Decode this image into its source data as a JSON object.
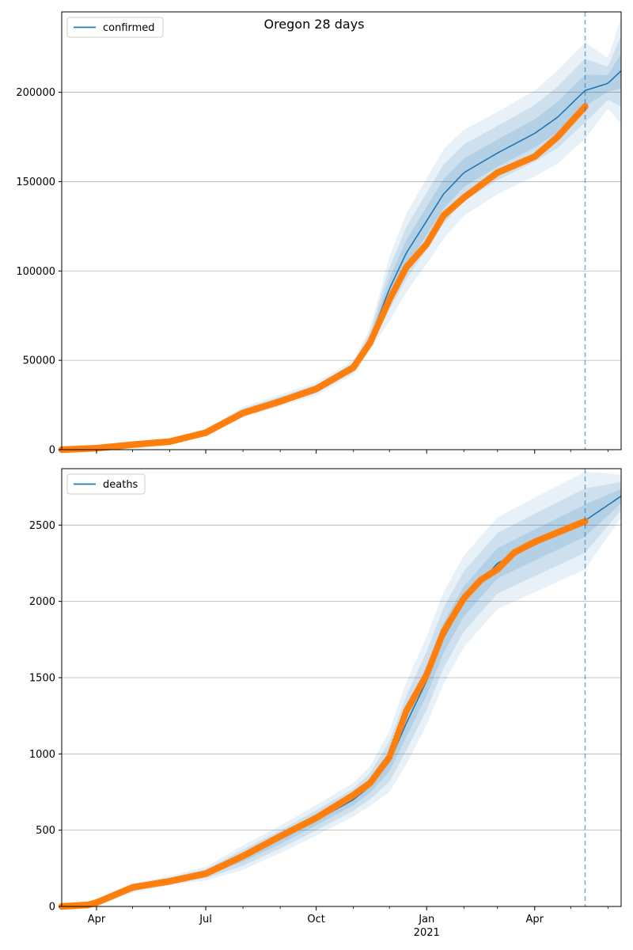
{
  "figure": {
    "title": "Oregon 28 days"
  },
  "colors": {
    "forecast_line": "#1f77b4",
    "observed_points": "#ff7f0e",
    "band": "#1f77b4",
    "grid": "#b0b0b0",
    "axes": "#000000"
  },
  "x_axis": {
    "tick_labels": [
      {
        "date": "2020-04-01",
        "label": "Apr",
        "sublabel": ""
      },
      {
        "date": "2020-07-01",
        "label": "Jul",
        "sublabel": ""
      },
      {
        "date": "2020-10-01",
        "label": "Oct",
        "sublabel": ""
      },
      {
        "date": "2021-01-01",
        "label": "Jan",
        "sublabel": "2021"
      },
      {
        "date": "2021-04-01",
        "label": "Apr",
        "sublabel": ""
      }
    ],
    "minor_tick_dates": [
      "2020-05-01",
      "2020-06-01",
      "2020-08-01",
      "2020-09-01",
      "2020-11-01",
      "2020-12-01",
      "2021-02-01",
      "2021-03-01",
      "2021-05-01",
      "2021-06-01"
    ],
    "range": [
      "2020-03-03",
      "2021-06-12"
    ]
  },
  "chart_data": [
    {
      "type": "line",
      "legend": {
        "label": "confirmed",
        "position": "top-left"
      },
      "ylim": [
        0,
        245000
      ],
      "yticks": [
        0,
        50000,
        100000,
        150000,
        200000
      ],
      "ytick_labels": [
        "0",
        "50000",
        "100000",
        "150000",
        "200000"
      ],
      "grid": true,
      "forecast_start": "2021-05-13",
      "model_line": [
        [
          "2020-03-03",
          0
        ],
        [
          "2020-04-01",
          600
        ],
        [
          "2020-05-01",
          2800
        ],
        [
          "2020-06-01",
          5000
        ],
        [
          "2020-07-01",
          10000
        ],
        [
          "2020-08-01",
          21000
        ],
        [
          "2020-09-01",
          27500
        ],
        [
          "2020-10-01",
          34000
        ],
        [
          "2020-11-01",
          46000
        ],
        [
          "2020-11-15",
          62000
        ],
        [
          "2020-12-01",
          90000
        ],
        [
          "2020-12-15",
          110000
        ],
        [
          "2021-01-01",
          128000
        ],
        [
          "2021-01-15",
          143000
        ],
        [
          "2021-02-01",
          155000
        ],
        [
          "2021-03-01",
          166000
        ],
        [
          "2021-04-01",
          177000
        ],
        [
          "2021-04-20",
          186000
        ],
        [
          "2021-05-13",
          201000
        ],
        [
          "2021-06-01",
          205000
        ],
        [
          "2021-06-12",
          212000
        ]
      ],
      "band_width": [
        [
          "2020-03-03",
          0
        ],
        [
          "2020-04-01",
          300
        ],
        [
          "2020-05-01",
          500
        ],
        [
          "2020-06-01",
          900
        ],
        [
          "2020-07-01",
          1500
        ],
        [
          "2020-08-01",
          3000
        ],
        [
          "2020-09-01",
          3300
        ],
        [
          "2020-10-01",
          3600
        ],
        [
          "2020-11-01",
          4000
        ],
        [
          "2020-11-15",
          6000
        ],
        [
          "2020-12-01",
          18000
        ],
        [
          "2020-12-15",
          22000
        ],
        [
          "2021-01-01",
          24000
        ],
        [
          "2021-01-15",
          25000
        ],
        [
          "2021-02-01",
          24000
        ],
        [
          "2021-03-01",
          23000
        ],
        [
          "2021-04-01",
          24000
        ],
        [
          "2021-04-20",
          26000
        ],
        [
          "2021-05-13",
          27000
        ],
        [
          "2021-06-01",
          14000
        ],
        [
          "2021-06-12",
          30000
        ]
      ],
      "observed": [
        [
          "2020-03-03",
          0
        ],
        [
          "2020-04-01",
          800
        ],
        [
          "2020-05-01",
          2800
        ],
        [
          "2020-06-01",
          4500
        ],
        [
          "2020-07-01",
          9500
        ],
        [
          "2020-08-01",
          20500
        ],
        [
          "2020-09-01",
          27000
        ],
        [
          "2020-10-01",
          34000
        ],
        [
          "2020-11-01",
          46000
        ],
        [
          "2020-11-15",
          60000
        ],
        [
          "2020-12-01",
          84000
        ],
        [
          "2020-12-15",
          102000
        ],
        [
          "2021-01-01",
          115000
        ],
        [
          "2021-01-15",
          131000
        ],
        [
          "2021-02-01",
          141000
        ],
        [
          "2021-03-01",
          155000
        ],
        [
          "2021-04-01",
          164000
        ],
        [
          "2021-04-20",
          175000
        ],
        [
          "2021-05-13",
          192000
        ]
      ]
    },
    {
      "type": "line",
      "legend": {
        "label": "deaths",
        "position": "top-left"
      },
      "ylim": [
        0,
        2870
      ],
      "yticks": [
        0,
        500,
        1000,
        1500,
        2000,
        2500
      ],
      "ytick_labels": [
        "0",
        "500",
        "1000",
        "1500",
        "2000",
        "2500"
      ],
      "grid": true,
      "forecast_start": "2021-05-13",
      "model_line": [
        [
          "2020-03-03",
          0
        ],
        [
          "2020-04-01",
          25
        ],
        [
          "2020-05-01",
          120
        ],
        [
          "2020-06-01",
          170
        ],
        [
          "2020-07-01",
          215
        ],
        [
          "2020-08-01",
          320
        ],
        [
          "2020-09-01",
          440
        ],
        [
          "2020-10-01",
          565
        ],
        [
          "2020-11-01",
          700
        ],
        [
          "2020-11-15",
          790
        ],
        [
          "2020-12-01",
          950
        ],
        [
          "2020-12-15",
          1200
        ],
        [
          "2021-01-01",
          1480
        ],
        [
          "2021-01-15",
          1760
        ],
        [
          "2021-02-01",
          2000
        ],
        [
          "2021-03-01",
          2250
        ],
        [
          "2021-04-01",
          2370
        ],
        [
          "2021-05-13",
          2530
        ],
        [
          "2021-06-12",
          2690
        ]
      ],
      "band_width": [
        [
          "2020-03-03",
          0
        ],
        [
          "2020-04-01",
          20
        ],
        [
          "2020-05-01",
          30
        ],
        [
          "2020-06-01",
          30
        ],
        [
          "2020-07-01",
          45
        ],
        [
          "2020-08-01",
          80
        ],
        [
          "2020-09-01",
          90
        ],
        [
          "2020-10-01",
          100
        ],
        [
          "2020-11-01",
          110
        ],
        [
          "2020-11-15",
          130
        ],
        [
          "2020-12-01",
          200
        ],
        [
          "2020-12-15",
          270
        ],
        [
          "2021-01-01",
          290
        ],
        [
          "2021-01-15",
          300
        ],
        [
          "2021-02-01",
          300
        ],
        [
          "2021-03-01",
          300
        ],
        [
          "2021-04-01",
          310
        ],
        [
          "2021-05-13",
          320
        ],
        [
          "2021-06-12",
          140
        ]
      ],
      "observed": [
        [
          "2020-03-03",
          0
        ],
        [
          "2020-03-25",
          10
        ],
        [
          "2020-04-01",
          25
        ],
        [
          "2020-05-01",
          125
        ],
        [
          "2020-06-01",
          165
        ],
        [
          "2020-07-01",
          215
        ],
        [
          "2020-08-01",
          330
        ],
        [
          "2020-09-01",
          460
        ],
        [
          "2020-10-01",
          580
        ],
        [
          "2020-11-01",
          730
        ],
        [
          "2020-11-15",
          810
        ],
        [
          "2020-12-01",
          980
        ],
        [
          "2020-12-15",
          1280
        ],
        [
          "2021-01-01",
          1520
        ],
        [
          "2021-01-15",
          1800
        ],
        [
          "2021-02-01",
          2020
        ],
        [
          "2021-02-15",
          2140
        ],
        [
          "2021-03-01",
          2210
        ],
        [
          "2021-03-15",
          2320
        ],
        [
          "2021-04-01",
          2390
        ],
        [
          "2021-05-13",
          2525
        ]
      ]
    }
  ]
}
